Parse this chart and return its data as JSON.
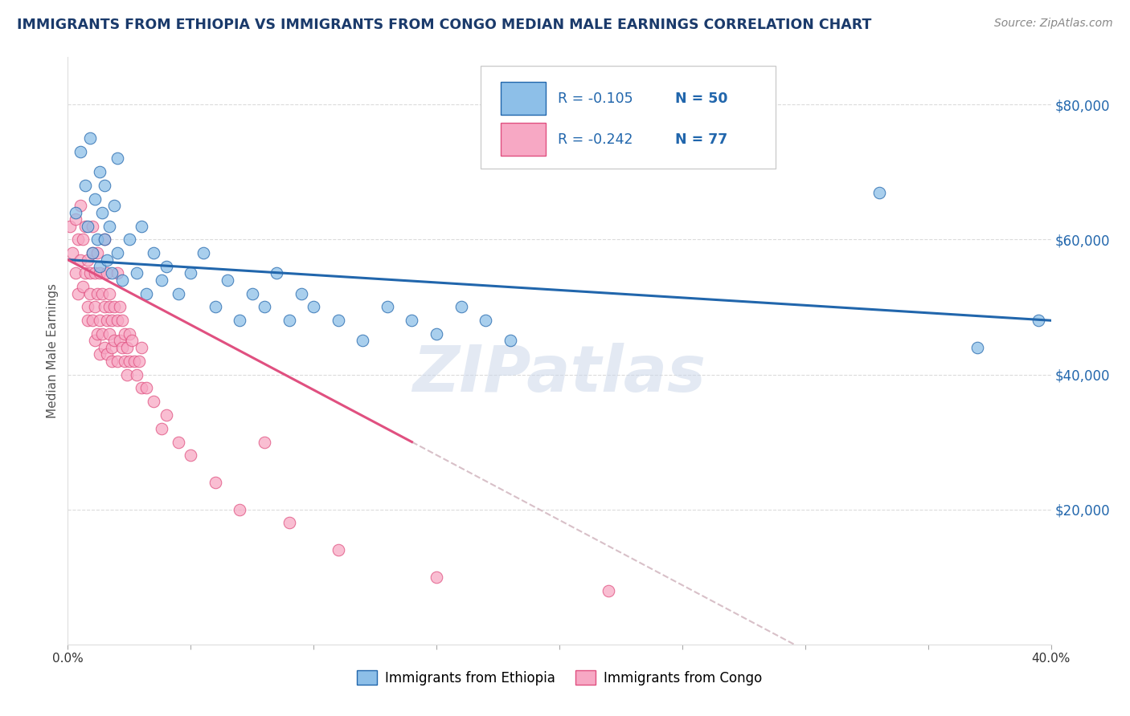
{
  "title": "IMMIGRANTS FROM ETHIOPIA VS IMMIGRANTS FROM CONGO MEDIAN MALE EARNINGS CORRELATION CHART",
  "source": "Source: ZipAtlas.com",
  "ylabel": "Median Male Earnings",
  "xlim": [
    0.0,
    0.4
  ],
  "ylim": [
    0,
    85000
  ],
  "yticks": [
    20000,
    40000,
    60000,
    80000
  ],
  "ytick_labels": [
    "$20,000",
    "$40,000",
    "$60,000",
    "$80,000"
  ],
  "xticks": [
    0.0,
    0.05,
    0.1,
    0.15,
    0.2,
    0.25,
    0.3,
    0.35,
    0.4
  ],
  "xtick_labels": [
    "0.0%",
    "",
    "",
    "",
    "",
    "",
    "",
    "",
    "40.0%"
  ],
  "watermark": "ZIPatlas",
  "legend_R1": "-0.105",
  "legend_N1": "50",
  "legend_R2": "-0.242",
  "legend_N2": "77",
  "color_ethiopia": "#8dbfe8",
  "color_congo": "#f7a8c4",
  "line_color_ethiopia": "#2166ac",
  "line_color_congo": "#e05080",
  "line_color_dashed": "#d8c0c8",
  "title_color": "#1a3a6b",
  "source_color": "#888888",
  "background_color": "#ffffff",
  "ethiopia_x": [
    0.003,
    0.005,
    0.007,
    0.008,
    0.009,
    0.01,
    0.011,
    0.012,
    0.013,
    0.013,
    0.014,
    0.015,
    0.015,
    0.016,
    0.017,
    0.018,
    0.019,
    0.02,
    0.02,
    0.022,
    0.025,
    0.028,
    0.03,
    0.032,
    0.035,
    0.038,
    0.04,
    0.045,
    0.05,
    0.055,
    0.06,
    0.065,
    0.07,
    0.075,
    0.08,
    0.085,
    0.09,
    0.095,
    0.1,
    0.11,
    0.12,
    0.13,
    0.14,
    0.15,
    0.16,
    0.17,
    0.18,
    0.33,
    0.37,
    0.395
  ],
  "ethiopia_y": [
    64000,
    73000,
    68000,
    62000,
    75000,
    58000,
    66000,
    60000,
    70000,
    56000,
    64000,
    60000,
    68000,
    57000,
    62000,
    55000,
    65000,
    58000,
    72000,
    54000,
    60000,
    55000,
    62000,
    52000,
    58000,
    54000,
    56000,
    52000,
    55000,
    58000,
    50000,
    54000,
    48000,
    52000,
    50000,
    55000,
    48000,
    52000,
    50000,
    48000,
    45000,
    50000,
    48000,
    46000,
    50000,
    48000,
    45000,
    67000,
    44000,
    48000
  ],
  "congo_x": [
    0.001,
    0.002,
    0.003,
    0.003,
    0.004,
    0.004,
    0.005,
    0.005,
    0.006,
    0.006,
    0.007,
    0.007,
    0.008,
    0.008,
    0.008,
    0.009,
    0.009,
    0.01,
    0.01,
    0.01,
    0.011,
    0.011,
    0.011,
    0.012,
    0.012,
    0.012,
    0.013,
    0.013,
    0.013,
    0.014,
    0.014,
    0.015,
    0.015,
    0.015,
    0.016,
    0.016,
    0.016,
    0.017,
    0.017,
    0.017,
    0.018,
    0.018,
    0.018,
    0.019,
    0.019,
    0.02,
    0.02,
    0.02,
    0.021,
    0.021,
    0.022,
    0.022,
    0.023,
    0.023,
    0.024,
    0.024,
    0.025,
    0.025,
    0.026,
    0.027,
    0.028,
    0.029,
    0.03,
    0.03,
    0.032,
    0.035,
    0.038,
    0.04,
    0.045,
    0.05,
    0.06,
    0.07,
    0.08,
    0.09,
    0.11,
    0.15,
    0.22
  ],
  "congo_y": [
    62000,
    58000,
    63000,
    55000,
    60000,
    52000,
    65000,
    57000,
    53000,
    60000,
    55000,
    62000,
    50000,
    57000,
    48000,
    55000,
    52000,
    62000,
    48000,
    58000,
    55000,
    50000,
    45000,
    58000,
    52000,
    46000,
    55000,
    48000,
    43000,
    52000,
    46000,
    60000,
    50000,
    44000,
    55000,
    48000,
    43000,
    52000,
    46000,
    50000,
    44000,
    48000,
    42000,
    50000,
    45000,
    55000,
    48000,
    42000,
    50000,
    45000,
    44000,
    48000,
    42000,
    46000,
    44000,
    40000,
    46000,
    42000,
    45000,
    42000,
    40000,
    42000,
    38000,
    44000,
    38000,
    36000,
    32000,
    34000,
    30000,
    28000,
    24000,
    20000,
    30000,
    18000,
    14000,
    10000,
    8000
  ]
}
